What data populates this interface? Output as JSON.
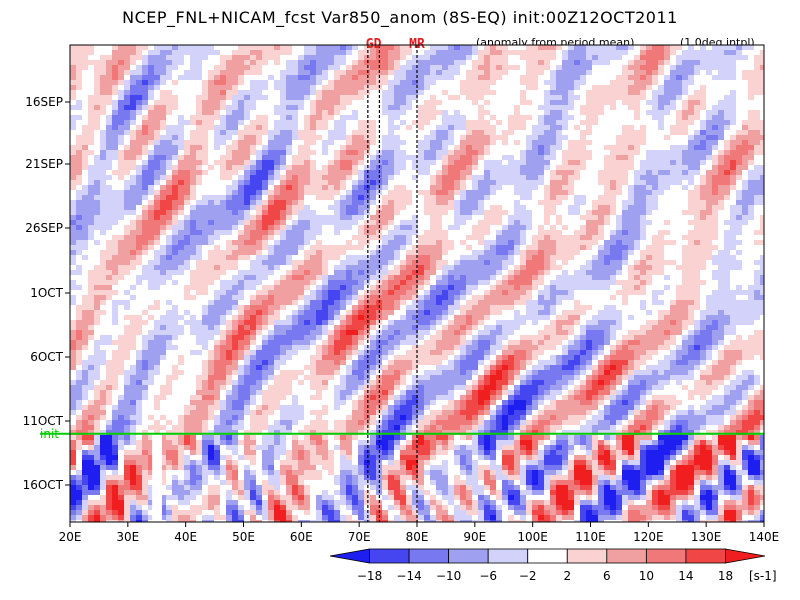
{
  "chart_data": {
    "type": "heatmap",
    "title": "NCEP_FNL+NICAM_fcst Var850_anom (8S-EQ) init:00Z12OCT2011",
    "subtitle": "(anomaly from period mean)",
    "note": "(1.0deg intpl)",
    "x_axis": {
      "range": [
        20,
        140
      ],
      "ticks": [
        "20E",
        "30E",
        "40E",
        "50E",
        "60E",
        "70E",
        "80E",
        "90E",
        "100E",
        "110E",
        "120E",
        "130E",
        "140E"
      ],
      "tick_values": [
        20,
        30,
        40,
        50,
        60,
        70,
        80,
        90,
        100,
        110,
        120,
        130,
        140
      ]
    },
    "y_axis": {
      "ticks": [
        "16SEP",
        "21SEP",
        "26SEP",
        "1OCT",
        "6OCT",
        "11OCT",
        "16OCT"
      ],
      "direction": "time increases downward"
    },
    "markers": [
      {
        "label": "GD",
        "lon_min": 71.5,
        "lon_max": 73.5
      },
      {
        "label": "MR",
        "lon": 80
      }
    ],
    "init_line": {
      "label": "init",
      "color": "#00cc00"
    },
    "colorbar": {
      "levels": [
        -18,
        -14,
        -10,
        -6,
        -2,
        2,
        6,
        10,
        14,
        18
      ],
      "level_labels": [
        "−18",
        "−14",
        "−10",
        "−6",
        "−2",
        "2",
        "6",
        "10",
        "14",
        "18"
      ],
      "unit": "[s-1]",
      "colors": [
        "#1e1ef0",
        "#4646f0",
        "#7878f0",
        "#a0a0f0",
        "#d2d2fa",
        "#ffffff",
        "#fad2d2",
        "#f0a0a0",
        "#f07878",
        "#f04646",
        "#f01e1e"
      ]
    }
  }
}
